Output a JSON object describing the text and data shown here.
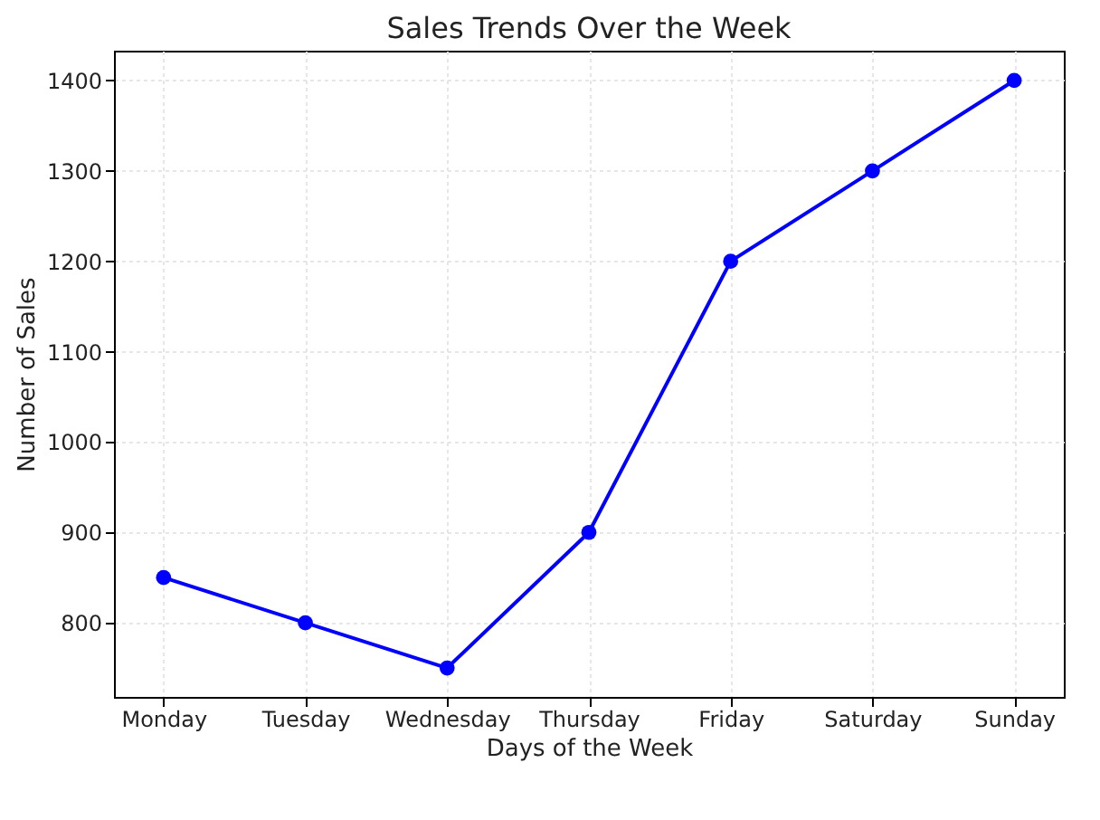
{
  "chart_data": {
    "type": "line",
    "title": "Sales Trends Over the Week",
    "xlabel": "Days of the Week",
    "ylabel": "Number of Sales",
    "categories": [
      "Monday",
      "Tuesday",
      "Wednesday",
      "Thursday",
      "Friday",
      "Saturday",
      "Sunday"
    ],
    "series": [
      {
        "color": "#0000ff",
        "values": [
          850,
          800,
          750,
          900,
          1200,
          1300,
          1400
        ]
      }
    ],
    "ylim": [
      718,
      1433
    ],
    "yticks": [
      800,
      900,
      1000,
      1100,
      1200,
      1300,
      1400
    ],
    "grid": true,
    "marker": "circle",
    "line_style": "solid"
  }
}
